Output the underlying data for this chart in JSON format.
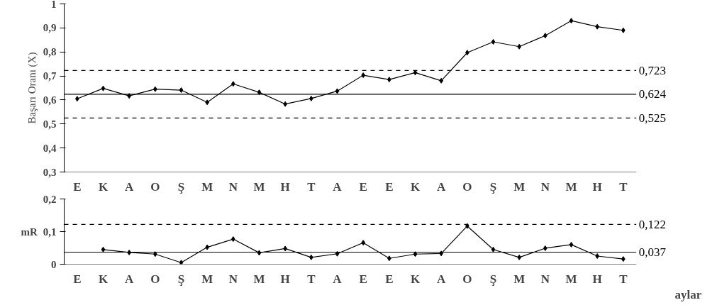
{
  "chart_data": [
    {
      "type": "line",
      "ylabel": "Başarı Oranı (X)",
      "color": "#000000",
      "marker": "diamond",
      "line_style": "solid",
      "grid": false,
      "categories": [
        "E",
        "K",
        "A",
        "O",
        "Ş",
        "M",
        "N",
        "M",
        "H",
        "T",
        "A",
        "E",
        "E",
        "K",
        "A",
        "O",
        "Ş",
        "M",
        "N",
        "M",
        "H",
        "T"
      ],
      "values": [
        0.605,
        0.648,
        0.617,
        0.645,
        0.641,
        0.59,
        0.667,
        0.632,
        0.583,
        0.606,
        0.637,
        0.703,
        0.685,
        0.714,
        0.68,
        0.797,
        0.842,
        0.822,
        0.868,
        0.93,
        0.905,
        0.89
      ],
      "ylim": [
        0.3,
        1
      ],
      "yticks": [
        {
          "value": 0.3,
          "label": "0,3"
        },
        {
          "value": 0.4,
          "label": "0,4"
        },
        {
          "value": 0.5,
          "label": "0,5"
        },
        {
          "value": 0.6,
          "label": "0,6"
        },
        {
          "value": 0.7,
          "label": "0,7"
        },
        {
          "value": 0.8,
          "label": "0,8"
        },
        {
          "value": 0.9,
          "label": "0,9"
        },
        1
      ],
      "ref_lines": [
        {
          "axis": "y",
          "value": 0.723,
          "label": "0,723",
          "line_style": "dashed"
        },
        {
          "axis": "y",
          "value": 0.624,
          "label": "0,624",
          "line_style": "solid"
        },
        {
          "axis": "y",
          "value": 0.525,
          "label": "0,525",
          "line_style": "dashed"
        }
      ]
    },
    {
      "type": "line",
      "ylabel": "mR",
      "xlabel": "aylar",
      "color": "#000000",
      "marker": "diamond",
      "line_style": "solid",
      "grid": false,
      "categories": [
        "E",
        "K",
        "A",
        "O",
        "Ş",
        "M",
        "N",
        "M",
        "H",
        "T",
        "A",
        "E",
        "E",
        "K",
        "A",
        "O",
        "Ş",
        "M",
        "N",
        "M",
        "H",
        "T"
      ],
      "values": [
        null,
        0.045,
        0.036,
        0.031,
        0.005,
        0.052,
        0.077,
        0.035,
        0.048,
        0.021,
        0.032,
        0.066,
        0.018,
        0.031,
        0.033,
        0.117,
        0.045,
        0.021,
        0.049,
        0.06,
        0.025,
        0.016
      ],
      "ylim": [
        0,
        0.2
      ],
      "yticks": [
        0,
        {
          "value": 0.1,
          "label": "0,1"
        },
        {
          "value": 0.2,
          "label": "0,2"
        }
      ],
      "ref_lines": [
        {
          "axis": "y",
          "value": 0.122,
          "label": "0,122",
          "line_style": "dashed"
        },
        {
          "axis": "y",
          "value": 0.037,
          "label": "0,037",
          "line_style": "solid"
        }
      ]
    }
  ]
}
